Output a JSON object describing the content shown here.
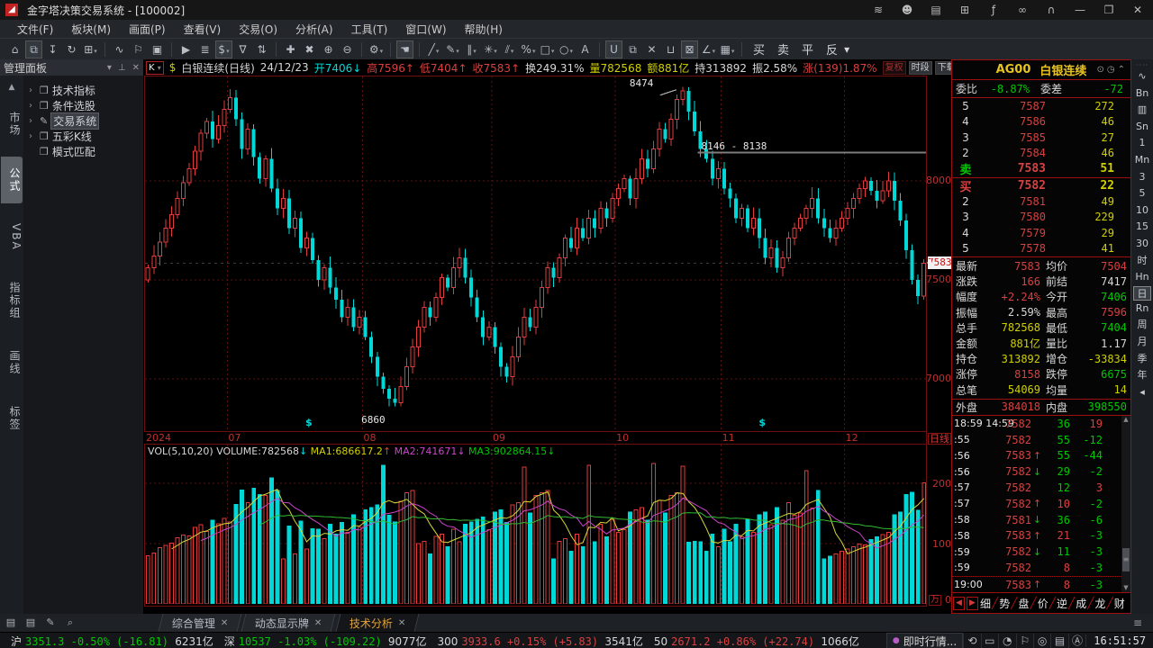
{
  "window": {
    "title": "金字塔决策交易系统 - [100002]",
    "icons": [
      {
        "g": "≋",
        "n": "feed-icon"
      },
      {
        "g": "☻",
        "n": "user-icon"
      },
      {
        "g": "▤",
        "n": "news-icon"
      },
      {
        "g": "⊞",
        "n": "cart-icon"
      },
      {
        "g": "ƒ",
        "n": "formula-icon"
      },
      {
        "g": "∞",
        "n": "share-icon"
      },
      {
        "g": "∩",
        "n": "support-icon"
      },
      {
        "g": "—",
        "n": "minimize-icon"
      },
      {
        "g": "❐",
        "n": "restore-icon"
      },
      {
        "g": "✕",
        "n": "close-icon"
      }
    ]
  },
  "menu": [
    "文件(F)",
    "板块(M)",
    "画面(P)",
    "查看(V)",
    "交易(O)",
    "分析(A)",
    "工具(T)",
    "窗口(W)",
    "帮助(H)"
  ],
  "toolbar": {
    "icons": [
      {
        "g": "⌂",
        "n": "home-icon"
      },
      {
        "g": "⧉",
        "n": "link-icon",
        "on": true
      },
      {
        "g": "↧",
        "n": "download-icon"
      },
      {
        "g": "↻",
        "n": "refresh-icon"
      },
      {
        "g": "⊞",
        "n": "layout-icon",
        "d": true
      },
      "|",
      {
        "g": "∿",
        "n": "indicator-icon"
      },
      {
        "g": "⚐",
        "n": "alert-icon"
      },
      {
        "g": "▣",
        "n": "image-icon"
      },
      "|",
      {
        "g": "▶",
        "n": "play-icon"
      },
      {
        "g": "≣",
        "n": "report-icon"
      },
      {
        "g": "$",
        "n": "money-icon",
        "d": true,
        "on": true
      },
      {
        "g": "∇",
        "n": "filter-icon"
      },
      {
        "g": "⇅",
        "n": "sort-icon"
      },
      "|",
      {
        "g": "✚",
        "n": "move-icon"
      },
      {
        "g": "✖",
        "n": "cancel-icon"
      },
      {
        "g": "⊕",
        "n": "zoom-in-icon"
      },
      {
        "g": "⊖",
        "n": "zoom-out-icon"
      },
      "|",
      {
        "g": "⚙",
        "n": "settings-icon",
        "d": true
      },
      "|",
      {
        "g": "☚",
        "n": "pointer-icon",
        "on": true
      },
      "|",
      {
        "g": "╱",
        "n": "trend-line-icon",
        "d": true
      },
      {
        "g": "✎",
        "n": "pencil-icon",
        "d": true
      },
      {
        "g": "∥",
        "n": "vertical-lines-icon",
        "d": true
      },
      {
        "g": "✳",
        "n": "ray-lines-icon",
        "d": true
      },
      {
        "g": "⫽",
        "n": "parallel-lines-icon",
        "d": true
      },
      {
        "g": "%",
        "n": "percent-lines-icon",
        "d": true
      },
      {
        "g": "□",
        "n": "rect-tool-icon",
        "d": true
      },
      {
        "g": "○",
        "n": "circle-tool-icon",
        "d": true
      },
      {
        "g": "A",
        "n": "text-tool-icon"
      },
      "|",
      {
        "g": "U",
        "n": "magnet-icon",
        "on": true
      },
      {
        "g": "⧉",
        "n": "copy-icon"
      },
      {
        "g": "✕",
        "n": "delete-icon"
      },
      {
        "g": "⊔",
        "n": "trash-icon"
      },
      {
        "g": "⊠",
        "n": "lock-icon",
        "on": true
      },
      {
        "g": "∠",
        "n": "angle-icon",
        "d": true
      },
      {
        "g": "▦",
        "n": "save-icon",
        "d": true
      },
      "|"
    ],
    "trade": [
      "买",
      "卖",
      "平",
      "反"
    ]
  },
  "sidebar": {
    "title": "管理面板",
    "head_icons": [
      "▾",
      "⊥",
      "✕"
    ],
    "tabs": [
      "市场",
      "公式",
      "VBA",
      "指标组",
      "画线",
      "标签"
    ],
    "active_tab": "公式",
    "tree": [
      {
        "arrow": true,
        "icon": "folder",
        "label": "技术指标"
      },
      {
        "arrow": true,
        "icon": "folder",
        "label": "条件选股"
      },
      {
        "arrow": true,
        "icon": "pen",
        "label": "交易系统",
        "selected": true
      },
      {
        "arrow": true,
        "icon": "folder",
        "label": "五彩K线"
      },
      {
        "arrow": false,
        "icon": "folder",
        "label": "模式匹配"
      }
    ]
  },
  "chart": {
    "header": {
      "mode": "K",
      "dollar": "$",
      "date": "24/12/23",
      "segs": [
        {
          "t": "开7406",
          "c": "c",
          "a": "↓",
          "ac": "c"
        },
        {
          "t": "高7596",
          "c": "r",
          "a": "↑",
          "ac": "r"
        },
        {
          "t": "低7404",
          "c": "r",
          "a": "↑",
          "ac": "r"
        },
        {
          "t": "收7583",
          "c": "r",
          "a": "↑",
          "ac": "r"
        },
        {
          "t": "换249.31%",
          "c": "w"
        },
        {
          "t": "量782568",
          "c": "y"
        },
        {
          "t": "额881亿",
          "c": "y"
        },
        {
          "t": "持313892",
          "c": "w"
        },
        {
          "t": "振2.58%",
          "c": "w"
        },
        {
          "t": "涨(139)1.87%",
          "c": "r"
        }
      ],
      "title": "白银连续(日线)",
      "buttons": [
        {
          "t": "复权",
          "dim": true
        },
        {
          "t": "时段",
          "dim": false
        },
        {
          "t": "下载",
          "dim": false
        },
        {
          "t": "限量",
          "dim": true
        }
      ],
      "clock_icon": "◷",
      "popup_icon": "❐"
    },
    "y_ticks": [
      8000,
      7500,
      7000
    ],
    "price_tag": "7583",
    "last_price": 7583,
    "annotations": {
      "peak": "8474",
      "range_line": "8146 - 8138",
      "range_price": 8142,
      "low": "6860"
    },
    "x_labels": [
      "2024",
      "07",
      "08",
      "09",
      "10",
      "11",
      "12"
    ],
    "month_starts": [
      0,
      14,
      37,
      59,
      80,
      98,
      119
    ],
    "period_label": "日线",
    "dollar_marks": [
      0.205,
      0.785
    ],
    "closes": [
      7560,
      7620,
      7690,
      7760,
      7830,
      7910,
      7990,
      8060,
      8150,
      8240,
      8300,
      8210,
      8280,
      8360,
      8420,
      8310,
      8160,
      8260,
      8120,
      8010,
      8110,
      7960,
      7860,
      7910,
      7760,
      7810,
      7660,
      7710,
      7600,
      7500,
      7560,
      7460,
      7400,
      7310,
      7360,
      7260,
      7310,
      7210,
      7110,
      7010,
      6950,
      6900,
      6880,
      6960,
      7060,
      7160,
      7260,
      7360,
      7310,
      7410,
      7510,
      7460,
      7560,
      7610,
      7510,
      7410,
      7310,
      7210,
      7260,
      7160,
      7060,
      7010,
      7110,
      7210,
      7310,
      7260,
      7360,
      7460,
      7560,
      7510,
      7610,
      7710,
      7660,
      7760,
      7710,
      7810,
      7760,
      7860,
      7810,
      7910,
      7960,
      8010,
      7910,
      8010,
      8110,
      8060,
      8160,
      8260,
      8210,
      8310,
      8410,
      8455,
      8350,
      8250,
      8160,
      8110,
      8010,
      8060,
      7960,
      7910,
      7810,
      7860,
      7760,
      7810,
      7710,
      7610,
      7660,
      7560,
      7610,
      7710,
      7760,
      7810,
      7860,
      7910,
      7810,
      7760,
      7710,
      7760,
      7810,
      7860,
      7910,
      7960,
      8000,
      7950,
      7900,
      7950,
      8000,
      7900,
      7800,
      7650,
      7500,
      7417,
      7583
    ],
    "vol_header": [
      {
        "t": "VOL(5,10,20)",
        "c": "w"
      },
      {
        "t": "VOLUME:782568",
        "c": "w",
        "a": "↓",
        "ac": "c"
      },
      {
        "t": "MA1:686617.2",
        "c": "y",
        "a": "↑",
        "ac": "r"
      },
      {
        "t": "MA2:741671",
        "c": "m",
        "a": "↓",
        "ac": "m"
      },
      {
        "t": "MA3:902864.15",
        "c": "g",
        "a": "↓",
        "ac": "g"
      }
    ],
    "vol_ticks": [
      "200",
      "100",
      "0"
    ],
    "vol_unit": "万"
  },
  "quote": {
    "code": "AG00",
    "name": "白银连续",
    "head_icons": [
      "⊙",
      "◷",
      "⌃"
    ],
    "weibi_label": "委比",
    "weibi_value": "-8.87%",
    "weicha_label": "委差",
    "weicha_value": "-72",
    "asks": [
      {
        "lab": "5",
        "price": "7587",
        "qty": "272"
      },
      {
        "lab": "4",
        "price": "7586",
        "qty": "46"
      },
      {
        "lab": "3",
        "price": "7585",
        "qty": "27"
      },
      {
        "lab": "2",
        "price": "7584",
        "qty": "46"
      },
      {
        "lab": "卖",
        "price": "7583",
        "qty": "51",
        "big": true
      }
    ],
    "bids": [
      {
        "lab": "买",
        "price": "7582",
        "qty": "22",
        "big": true
      },
      {
        "lab": "2",
        "price": "7581",
        "qty": "49"
      },
      {
        "lab": "3",
        "price": "7580",
        "qty": "229"
      },
      {
        "lab": "4",
        "price": "7579",
        "qty": "29"
      },
      {
        "lab": "5",
        "price": "7578",
        "qty": "41"
      }
    ],
    "stats": [
      [
        {
          "l": "最新",
          "v": "7583",
          "c": "r"
        },
        {
          "l": "均价",
          "v": "7504",
          "c": "r"
        }
      ],
      [
        {
          "l": "涨跌",
          "v": "166",
          "c": "r"
        },
        {
          "l": "前结",
          "v": "7417",
          "c": "w"
        }
      ],
      [
        {
          "l": "幅度",
          "v": "+2.24%",
          "c": "r"
        },
        {
          "l": "今开",
          "v": "7406",
          "c": "g"
        }
      ],
      [
        {
          "l": "振幅",
          "v": "2.59%",
          "c": "w"
        },
        {
          "l": "最高",
          "v": "7596",
          "c": "r"
        }
      ],
      [
        {
          "l": "总手",
          "v": "782568",
          "c": "y"
        },
        {
          "l": "最低",
          "v": "7404",
          "c": "g"
        }
      ],
      [
        {
          "l": "金额",
          "v": "881亿",
          "c": "y"
        },
        {
          "l": "量比",
          "v": "1.17",
          "c": "w"
        }
      ],
      [
        {
          "l": "持仓",
          "v": "313892",
          "c": "y"
        },
        {
          "l": "增仓",
          "v": "-33834",
          "c": "y"
        }
      ],
      [
        {
          "l": "涨停",
          "v": "8158",
          "c": "r"
        },
        {
          "l": "跌停",
          "v": "6675",
          "c": "g"
        }
      ],
      [
        {
          "l": "总笔",
          "v": "54069",
          "c": "y"
        },
        {
          "l": "均量",
          "v": "14",
          "c": "y"
        }
      ]
    ],
    "inout": [
      {
        "l": "外盘",
        "v": "384018",
        "c": "r"
      },
      {
        "l": "内盘",
        "v": "398550",
        "c": "g"
      }
    ],
    "ticks": [
      {
        "t": "18:59 14:59",
        "p": "7582",
        "a": "",
        "ac": "",
        "v": "36",
        "vc": "g",
        "o": "19",
        "oc": "r"
      },
      {
        "t": ":55",
        "p": "7582",
        "a": "",
        "ac": "",
        "v": "55",
        "vc": "g",
        "o": "-12",
        "oc": "g"
      },
      {
        "t": ":56",
        "p": "7583",
        "a": "↑",
        "ac": "r",
        "v": "55",
        "vc": "g",
        "o": "-44",
        "oc": "g"
      },
      {
        "t": ":56",
        "p": "7582",
        "a": "↓",
        "ac": "g",
        "v": "29",
        "vc": "g",
        "o": "-2",
        "oc": "g"
      },
      {
        "t": ":57",
        "p": "7582",
        "a": "",
        "ac": "",
        "v": "12",
        "vc": "g",
        "o": "3",
        "oc": "r"
      },
      {
        "t": ":57",
        "p": "7582",
        "a": "↑",
        "ac": "r",
        "v": "10",
        "vc": "r",
        "o": "-2",
        "oc": "g"
      },
      {
        "t": ":58",
        "p": "7581",
        "a": "↓",
        "ac": "g",
        "v": "36",
        "vc": "g",
        "o": "-6",
        "oc": "g"
      },
      {
        "t": ":58",
        "p": "7583",
        "a": "↑",
        "ac": "r",
        "v": "21",
        "vc": "r",
        "o": "-3",
        "oc": "g"
      },
      {
        "t": ":59",
        "p": "7582",
        "a": "↓",
        "ac": "g",
        "v": "11",
        "vc": "g",
        "o": "-3",
        "oc": "g"
      },
      {
        "t": ":59",
        "p": "7582",
        "a": "",
        "ac": "",
        "v": "8",
        "vc": "r",
        "o": "-3",
        "oc": "g"
      },
      {
        "t": "19:00",
        "p": "7583",
        "a": "↑",
        "ac": "r",
        "v": "8",
        "vc": "r",
        "o": "-3",
        "oc": "g",
        "sep": true
      }
    ],
    "tabs": [
      "细",
      "势",
      "盘",
      "价",
      "逆",
      "成",
      "龙",
      "财"
    ]
  },
  "periods": {
    "grip": "····",
    "items": [
      {
        "t": "∿",
        "n": "tick-chart-icon"
      },
      {
        "t": "Bn"
      },
      {
        "t": "▥",
        "n": "kline-chart-icon"
      },
      {
        "t": "Sn"
      },
      {
        "t": "1"
      },
      {
        "t": "Mn"
      },
      {
        "t": "3"
      },
      {
        "t": "5"
      },
      {
        "t": "10"
      },
      {
        "t": "15"
      },
      {
        "t": "30"
      },
      {
        "t": "时"
      },
      {
        "t": "Hn"
      },
      {
        "t": "日",
        "sel": true
      },
      {
        "t": "Rn"
      },
      {
        "t": "周"
      },
      {
        "t": "月"
      },
      {
        "t": "季"
      },
      {
        "t": "年"
      },
      {
        "t": "◂"
      }
    ]
  },
  "bottom": {
    "icons": [
      {
        "g": "▤",
        "n": "script1-icon"
      },
      {
        "g": "▤",
        "n": "script2-icon"
      },
      {
        "g": "✎",
        "n": "edit-icon"
      },
      {
        "g": "⌕",
        "n": "search-icon"
      }
    ],
    "tabs": [
      {
        "label": "综合管理",
        "active": false
      },
      {
        "label": "动态显示牌",
        "active": false
      },
      {
        "label": "技术分析",
        "active": true
      }
    ],
    "menu_icon": "≡"
  },
  "status": {
    "indices": [
      {
        "name": "沪",
        "price": "3351.3",
        "pct": "-0.50%",
        "chg": "(-16.81)",
        "amt": "6231亿",
        "dir": "g"
      },
      {
        "name": "深",
        "price": "10537",
        "pct": "-1.03%",
        "chg": "(-109.22)",
        "amt": "9077亿",
        "dir": "g"
      },
      {
        "name": "300",
        "price": "3933.6",
        "pct": "+0.15%",
        "chg": "(+5.83)",
        "amt": "3541亿",
        "dir": "r"
      },
      {
        "name": "50",
        "price": "2671.2",
        "pct": "+0.86%",
        "chg": "(+22.74)",
        "amt": "1066亿",
        "dir": "r"
      }
    ],
    "feed": "即时行情...",
    "icons": [
      {
        "g": "⟲",
        "n": "sync-icon"
      },
      {
        "g": "▭",
        "n": "database-icon"
      },
      {
        "g": "◔",
        "n": "compass-icon"
      },
      {
        "g": "⚐",
        "n": "alert2-icon"
      },
      {
        "g": "◎",
        "n": "target-icon"
      },
      {
        "g": "▤",
        "n": "list-icon"
      },
      {
        "g": "Ⓐ",
        "n": "assistant-icon"
      }
    ],
    "time": "16:51:57"
  }
}
